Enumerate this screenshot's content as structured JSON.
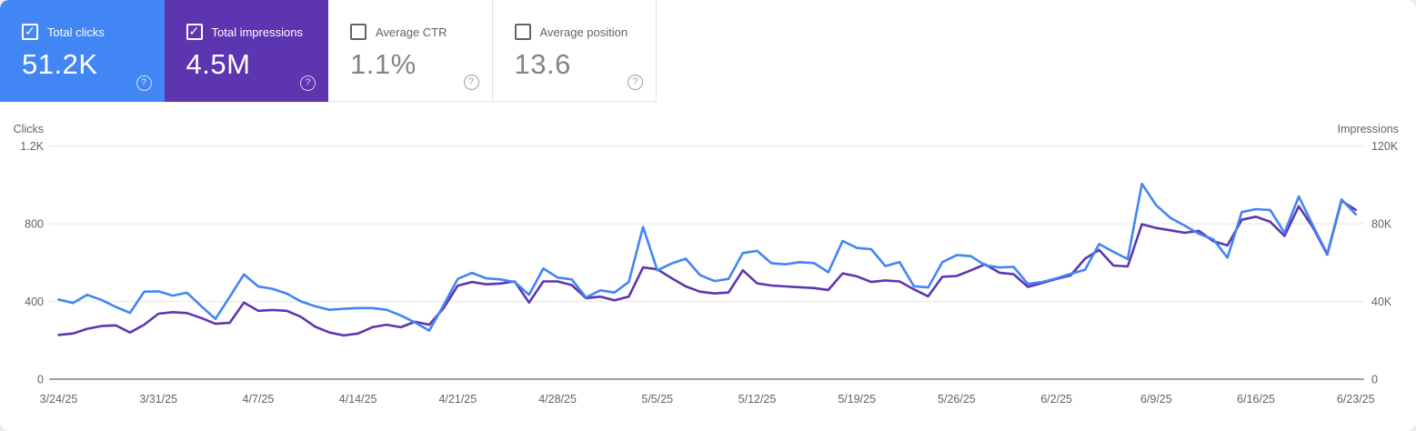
{
  "cards": [
    {
      "label": "Total clicks",
      "value": "51.2K",
      "checked": true,
      "bg": "#4285f4"
    },
    {
      "label": "Total impressions",
      "value": "4.5M",
      "checked": true,
      "bg": "#5e35b1"
    },
    {
      "label": "Average CTR",
      "value": "1.1%",
      "checked": false,
      "bg": "#ffffff"
    },
    {
      "label": "Average position",
      "value": "13.6",
      "checked": false,
      "bg": "#ffffff"
    }
  ],
  "help_glyph": "?",
  "chart_data": {
    "type": "line",
    "title": "",
    "grid": true,
    "left_axis": {
      "title": "Clicks",
      "ticks": [
        "0",
        "400",
        "800",
        "1.2K"
      ],
      "tick_values": [
        0,
        400,
        800,
        1200
      ],
      "range": [
        0,
        1200
      ]
    },
    "right_axis": {
      "title": "Impressions",
      "ticks": [
        "0",
        "40K",
        "80K",
        "120K"
      ],
      "tick_values": [
        0,
        40000,
        80000,
        120000
      ],
      "range": [
        0,
        120000
      ]
    },
    "x_tick_labels": [
      "3/24/25",
      "3/31/25",
      "4/7/25",
      "4/14/25",
      "4/21/25",
      "4/28/25",
      "5/5/25",
      "5/12/25",
      "5/19/25",
      "5/26/25",
      "6/2/25",
      "6/9/25",
      "6/16/25",
      "6/23/25"
    ],
    "dates": [
      "3/24/25",
      "3/25/25",
      "3/26/25",
      "3/27/25",
      "3/28/25",
      "3/29/25",
      "3/30/25",
      "3/31/25",
      "4/1/25",
      "4/2/25",
      "4/3/25",
      "4/4/25",
      "4/5/25",
      "4/6/25",
      "4/7/25",
      "4/8/25",
      "4/9/25",
      "4/10/25",
      "4/11/25",
      "4/12/25",
      "4/13/25",
      "4/14/25",
      "4/15/25",
      "4/16/25",
      "4/17/25",
      "4/18/25",
      "4/19/25",
      "4/20/25",
      "4/21/25",
      "4/22/25",
      "4/23/25",
      "4/24/25",
      "4/25/25",
      "4/26/25",
      "4/27/25",
      "4/28/25",
      "4/29/25",
      "4/30/25",
      "5/1/25",
      "5/2/25",
      "5/3/25",
      "5/4/25",
      "5/5/25",
      "5/6/25",
      "5/7/25",
      "5/8/25",
      "5/9/25",
      "5/10/25",
      "5/11/25",
      "5/12/25",
      "5/13/25",
      "5/14/25",
      "5/15/25",
      "5/16/25",
      "5/17/25",
      "5/18/25",
      "5/19/25",
      "5/20/25",
      "5/21/25",
      "5/22/25",
      "5/23/25",
      "5/24/25",
      "5/25/25",
      "5/26/25",
      "5/27/25",
      "5/28/25",
      "5/29/25",
      "5/30/25",
      "5/31/25",
      "6/1/25",
      "6/2/25",
      "6/3/25",
      "6/4/25",
      "6/5/25",
      "6/6/25",
      "6/7/25",
      "6/8/25",
      "6/9/25",
      "6/10/25",
      "6/11/25",
      "6/12/25",
      "6/13/25",
      "6/14/25",
      "6/15/25",
      "6/16/25",
      "6/17/25",
      "6/18/25",
      "6/19/25",
      "6/20/25",
      "6/21/25",
      "6/22/25",
      "6/23/25"
    ],
    "series": [
      {
        "name": "Clicks",
        "axis": "left",
        "color": "#4285f4",
        "values": [
          410,
          392,
          434,
          408,
          372,
          341,
          450,
          452,
          430,
          445,
          376,
          310,
          424,
          539,
          477,
          465,
          440,
          400,
          375,
          357,
          362,
          366,
          366,
          357,
          328,
          292,
          250,
          380,
          516,
          547,
          519,
          513,
          500,
          434,
          570,
          523,
          513,
          420,
          457,
          446,
          500,
          783,
          560,
          595,
          620,
          535,
          505,
          516,
          649,
          660,
          597,
          591,
          602,
          597,
          550,
          711,
          675,
          669,
          582,
          602,
          478,
          472,
          602,
          638,
          633,
          586,
          575,
          578,
          490,
          500,
          519,
          542,
          563,
          695,
          655,
          618,
          1005,
          895,
          830,
          790,
          748,
          720,
          625,
          860,
          875,
          870,
          753,
          940,
          790,
          645,
          925,
          848
        ]
      },
      {
        "name": "Impressions",
        "axis": "right",
        "color": "#5e35b1",
        "values": [
          22800,
          23500,
          25900,
          27300,
          27700,
          24000,
          28000,
          33700,
          34500,
          34000,
          31500,
          28500,
          29000,
          39400,
          35200,
          35600,
          35200,
          32100,
          27000,
          24000,
          22500,
          23500,
          26700,
          28000,
          26700,
          29500,
          28000,
          36500,
          48100,
          50000,
          48800,
          49200,
          50300,
          39400,
          50300,
          50300,
          48400,
          41700,
          42500,
          40600,
          42500,
          57500,
          56500,
          52000,
          47700,
          45000,
          44100,
          44600,
          56000,
          49300,
          48200,
          47700,
          47300,
          46900,
          45900,
          54400,
          52900,
          50000,
          50800,
          50300,
          46200,
          42600,
          52700,
          53100,
          56000,
          59100,
          54800,
          54000,
          47500,
          49500,
          51600,
          53400,
          62000,
          66500,
          58500,
          58000,
          79700,
          77800,
          76600,
          75300,
          76300,
          71000,
          68800,
          82000,
          83600,
          81000,
          73700,
          89000,
          78100,
          64100,
          91800,
          87100
        ]
      }
    ],
    "colors": {
      "gridline": "#e8eaed",
      "zero_line": "#9aa0a6",
      "axis_text": "#5f6368"
    }
  }
}
